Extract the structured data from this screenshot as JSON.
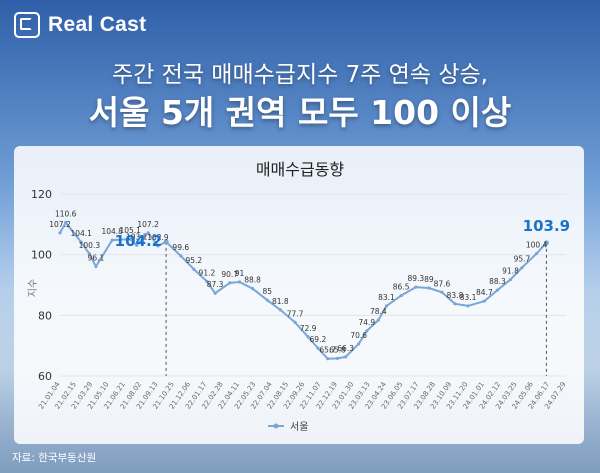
{
  "brand": {
    "name": "Real Cast",
    "icon": "realcast-logo-icon"
  },
  "headline": {
    "line1": "주간 전국 매매수급지수 7주 연속 상승,",
    "line2": "서울 5개 권역 모두 100 이상"
  },
  "source": "자료: 한국부동산원",
  "colors": {
    "line": "#7aa6d6",
    "highlight": "#1a73c9",
    "label": "#333333"
  },
  "chart_data": {
    "type": "line",
    "title": "매매수급동향",
    "ylabel": "지수",
    "xlabel": "",
    "ylim": [
      60,
      120
    ],
    "yticks": [
      60,
      80,
      100,
      120
    ],
    "grid": true,
    "legend": "bottom",
    "series_name": "서울",
    "x_ticks": [
      "21.01.04",
      "21.02.15",
      "21.03.29",
      "21.05.10",
      "21.06.21",
      "21.08.02",
      "21.09.13",
      "21.10.25",
      "21.12.06",
      "22.01.17",
      "22.02.28",
      "22.04.11",
      "22.05.23",
      "22.07.04",
      "22.08.15",
      "22.09.26",
      "22.11.07",
      "22.12.19",
      "23.01.30",
      "23.03.13",
      "23.04.24",
      "23.06.05",
      "23.07.17",
      "23.08.28",
      "23.10.09",
      "23.11.20",
      "24.01.01",
      "24.02.12",
      "24.03.25",
      "24.05.06",
      "24.06.17",
      "24.07.29"
    ],
    "points": [
      {
        "i": 0,
        "y": 107.2,
        "label": "107.2"
      },
      {
        "i": 0.35,
        "y": 110.6,
        "label": "110.6"
      },
      {
        "i": 1.3,
        "y": 104.1,
        "label": "104.1"
      },
      {
        "i": 1.8,
        "y": 100.3,
        "label": "100.3"
      },
      {
        "i": 2.2,
        "y": 96.1,
        "label": "96.1"
      },
      {
        "i": 3.2,
        "y": 104.8,
        "label": "104.8"
      },
      {
        "i": 4.3,
        "y": 105.1,
        "label": "105.1"
      },
      {
        "i": 4.7,
        "y": 103.1,
        "label": "103.1"
      },
      {
        "i": 5.4,
        "y": 107.2,
        "label": "107.2"
      },
      {
        "i": 6.0,
        "y": 102.9,
        "label": "102.9"
      },
      {
        "i": 6.5,
        "y": 104.2,
        "label": "104.2",
        "highlight": true
      },
      {
        "i": 7.4,
        "y": 99.6,
        "label": "99.6"
      },
      {
        "i": 8.2,
        "y": 95.2,
        "label": "95.2"
      },
      {
        "i": 9.0,
        "y": 91.2,
        "label": "91.2"
      },
      {
        "i": 9.5,
        "y": 87.3,
        "label": "87.3"
      },
      {
        "i": 10.4,
        "y": 90.7,
        "label": "90.7"
      },
      {
        "i": 11.0,
        "y": 91,
        "label": "91"
      },
      {
        "i": 11.8,
        "y": 88.8,
        "label": "88.8"
      },
      {
        "i": 12.7,
        "y": 85,
        "label": "85"
      },
      {
        "i": 13.5,
        "y": 81.8,
        "label": "81.8"
      },
      {
        "i": 14.4,
        "y": 77.7,
        "label": "77.7"
      },
      {
        "i": 15.2,
        "y": 72.9,
        "label": "72.9"
      },
      {
        "i": 15.8,
        "y": 69.2,
        "label": "69.2"
      },
      {
        "i": 16.4,
        "y": 65.7,
        "label": "65.7"
      },
      {
        "i": 17.0,
        "y": 65.8,
        "label": "65.8"
      },
      {
        "i": 17.5,
        "y": 66.3,
        "label": "66.3"
      },
      {
        "i": 18.3,
        "y": 70.6,
        "label": "70.6"
      },
      {
        "i": 18.8,
        "y": 74.9,
        "label": "74.9"
      },
      {
        "i": 19.5,
        "y": 78.4,
        "label": "78.4"
      },
      {
        "i": 20.0,
        "y": 83.1,
        "label": "83.1"
      },
      {
        "i": 20.9,
        "y": 86.5,
        "label": "86.5"
      },
      {
        "i": 21.8,
        "y": 89.3,
        "label": "89.3"
      },
      {
        "i": 22.6,
        "y": 89,
        "label": "89"
      },
      {
        "i": 23.4,
        "y": 87.6,
        "label": "87.6"
      },
      {
        "i": 24.2,
        "y": 83.8,
        "label": "83.8"
      },
      {
        "i": 25.0,
        "y": 83.1,
        "label": "83.1"
      },
      {
        "i": 26.0,
        "y": 84.7,
        "label": "84.7"
      },
      {
        "i": 26.8,
        "y": 88.3,
        "label": "88.3"
      },
      {
        "i": 27.6,
        "y": 91.8,
        "label": "91.8"
      },
      {
        "i": 28.3,
        "y": 95.7,
        "label": "95.7"
      },
      {
        "i": 29.2,
        "y": 100.4,
        "label": "100.4"
      },
      {
        "i": 29.8,
        "y": 103.9,
        "label": "103.9",
        "highlight": true
      }
    ]
  }
}
